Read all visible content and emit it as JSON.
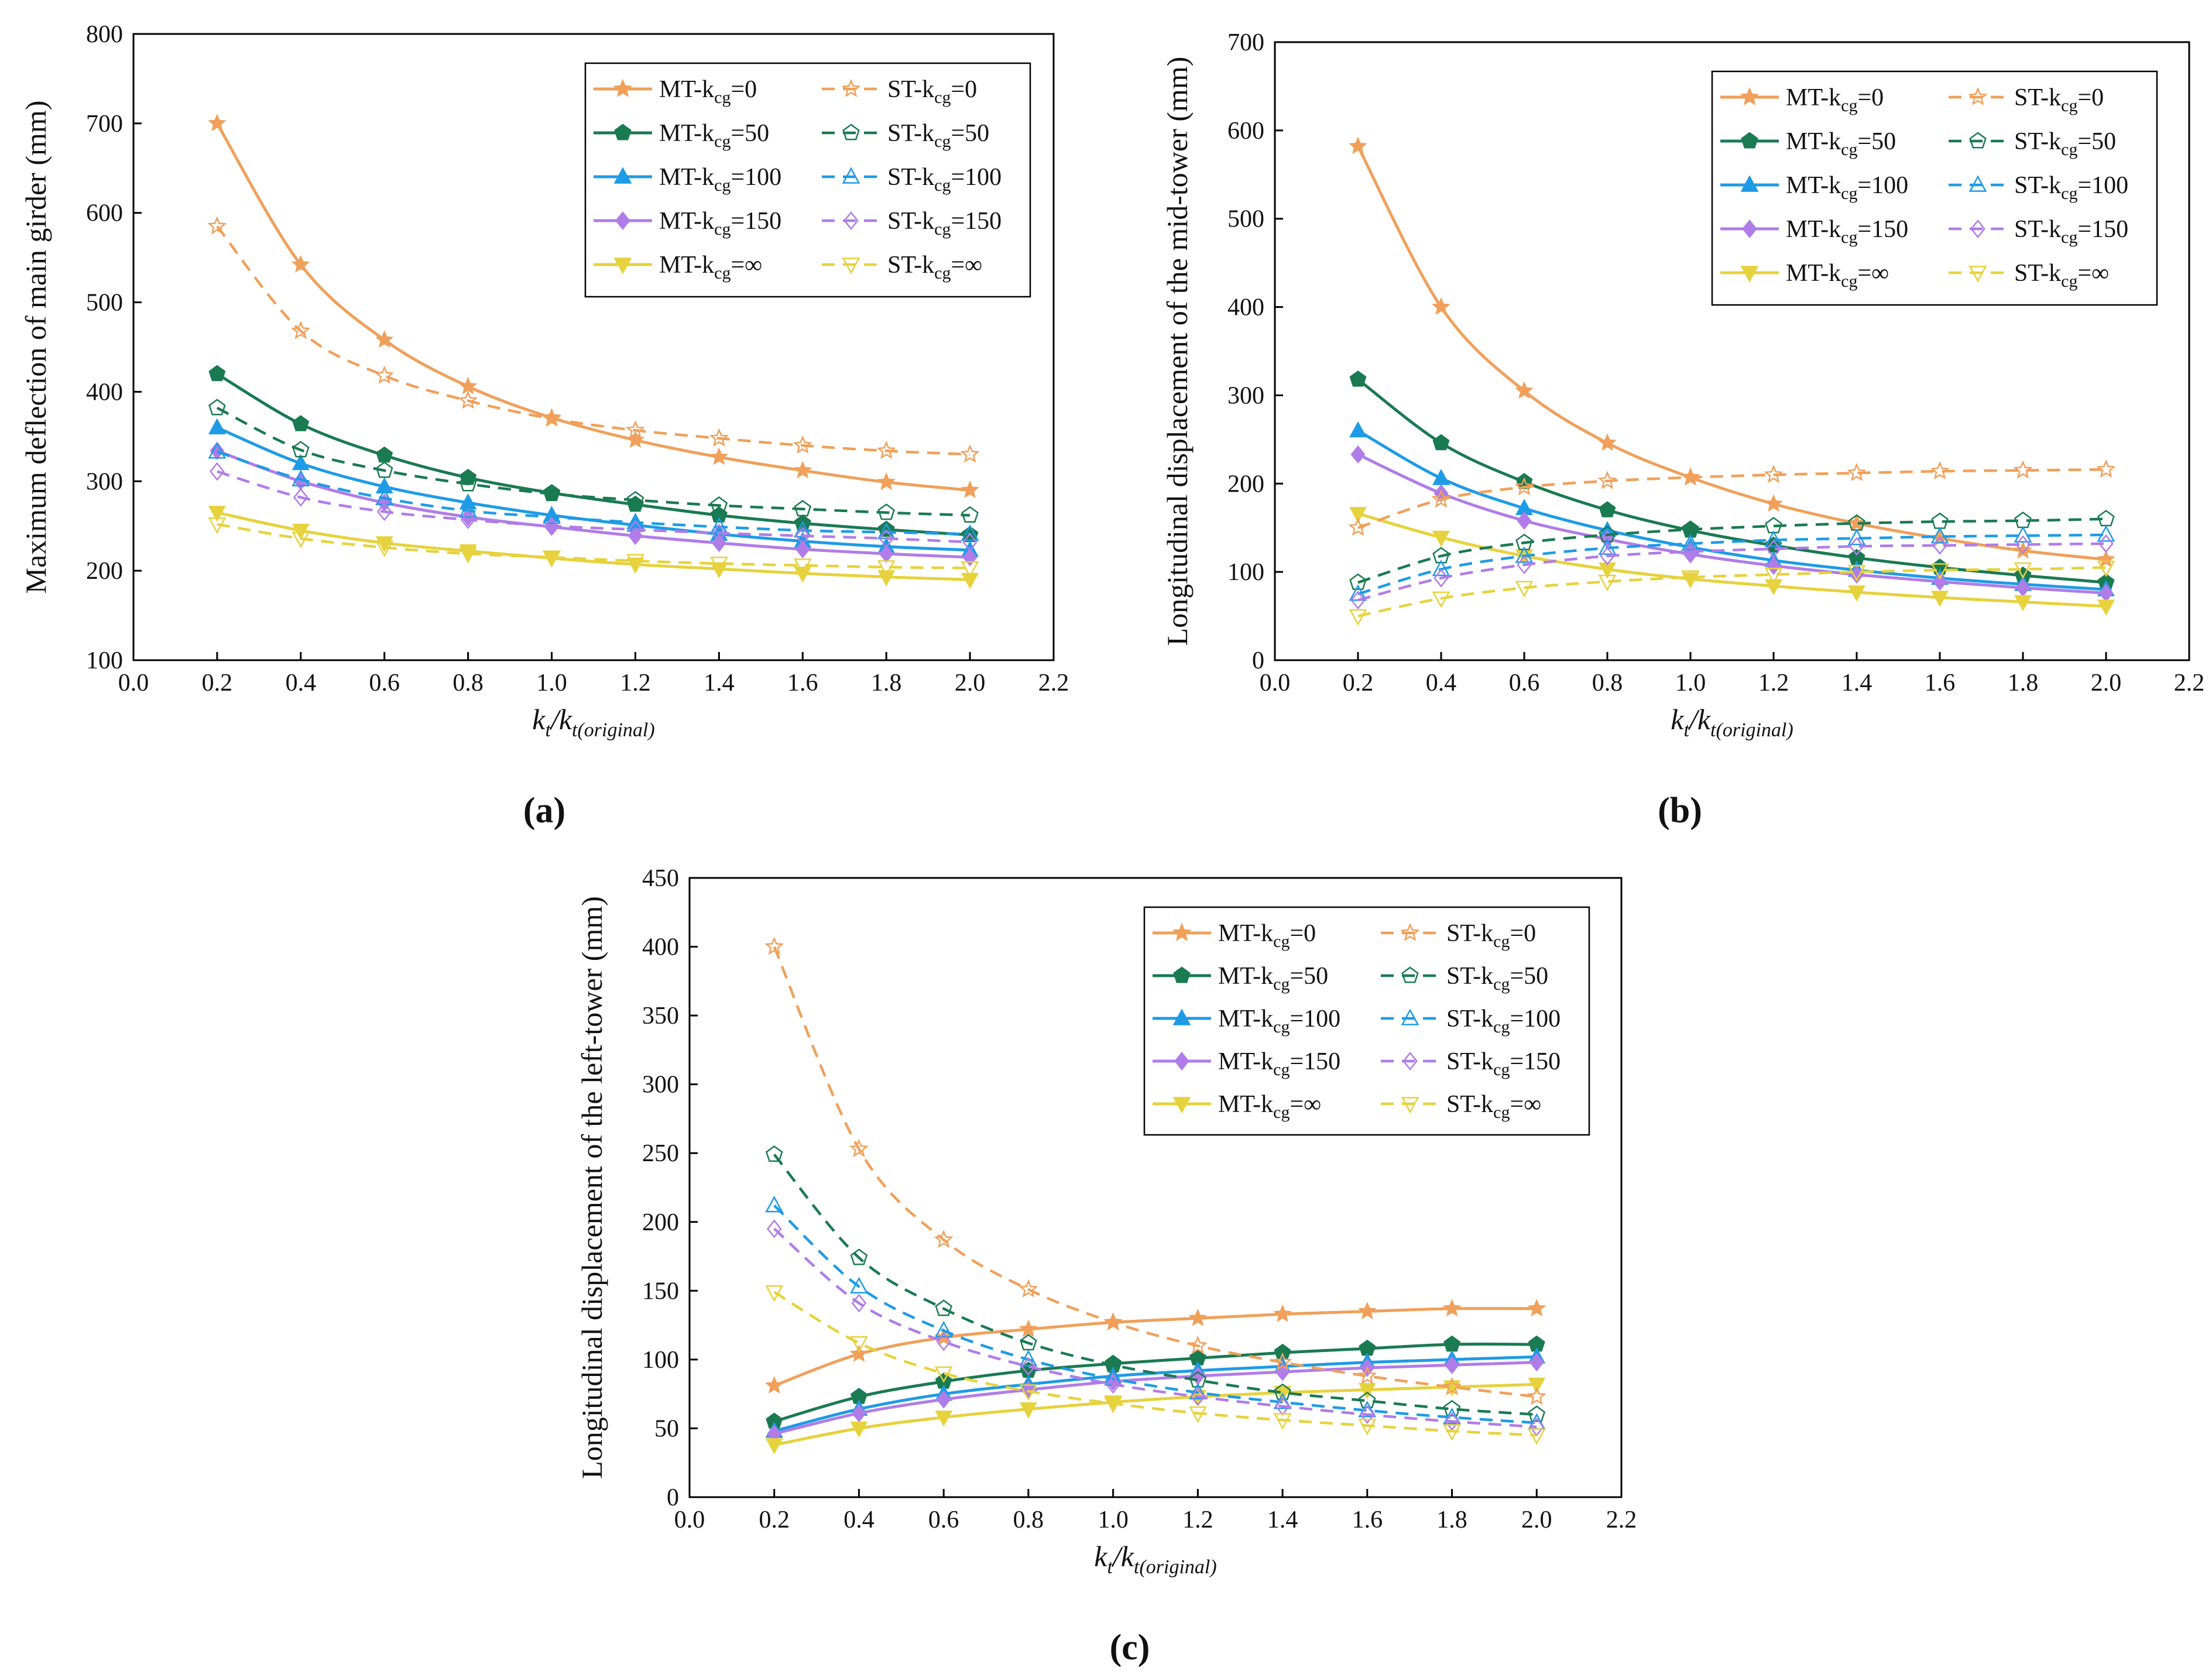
{
  "figure": {
    "panel_captions": [
      "(a)",
      "(b)",
      "(c)"
    ]
  },
  "series_styles": [
    {
      "key": "kcg0",
      "color": "#F0A05A",
      "marker": "star"
    },
    {
      "key": "kcg50",
      "color": "#1A7A52",
      "marker": "pentagon"
    },
    {
      "key": "kcg100",
      "color": "#1E9BE6",
      "marker": "triangle"
    },
    {
      "key": "kcg150",
      "color": "#B07CE8",
      "marker": "diamond"
    },
    {
      "key": "kcginf",
      "color": "#E6D23C",
      "marker": "triangle-down"
    }
  ],
  "legend": {
    "mt_prefix": "MT-k",
    "st_prefix": "ST-k",
    "subscript": "cg",
    "values": [
      "=0",
      "=50",
      "=100",
      "=150",
      "=∞"
    ]
  },
  "chart_data": [
    {
      "type": "line",
      "panel": "(a)",
      "title": "",
      "xlabel_main": "k",
      "xlabel_sub1": "t",
      "xlabel_mid": "/k",
      "xlabel_sub2": "t(original)",
      "ylabel": "Maximum deflection of main girder (mm)",
      "xlim": [
        0.0,
        2.2
      ],
      "ylim": [
        100,
        800
      ],
      "xticks": [
        0.0,
        0.2,
        0.4,
        0.6,
        0.8,
        1.0,
        1.2,
        1.4,
        1.6,
        1.8,
        2.0,
        2.2
      ],
      "xtick_labels": [
        "0.0",
        "0.2",
        "0.4",
        "0.6",
        "0.8",
        "1.0",
        "1.2",
        "1.4",
        "1.6",
        "1.8",
        "2.0",
        "2.2"
      ],
      "yticks": [
        100,
        200,
        300,
        400,
        500,
        600,
        700,
        800
      ],
      "ytick_labels": [
        "100",
        "200",
        "300",
        "400",
        "500",
        "600",
        "700",
        "800"
      ],
      "x": [
        0.2,
        0.4,
        0.6,
        0.8,
        1.0,
        1.2,
        1.4,
        1.6,
        1.8,
        2.0
      ],
      "legend_position": "top-right",
      "series": [
        {
          "name": "MT-kcg=0",
          "style": 0,
          "dashed": false,
          "values": [
            700,
            542,
            458,
            406,
            371,
            346,
            327,
            312,
            299,
            290
          ]
        },
        {
          "name": "MT-kcg=50",
          "style": 1,
          "dashed": false,
          "values": [
            420,
            364,
            329,
            304,
            287,
            274,
            262,
            253,
            246,
            240
          ]
        },
        {
          "name": "MT-kcg=100",
          "style": 2,
          "dashed": false,
          "values": [
            360,
            320,
            294,
            276,
            262,
            251,
            241,
            233,
            227,
            223
          ]
        },
        {
          "name": "MT-kcg=150",
          "style": 3,
          "dashed": false,
          "values": [
            334,
            300,
            276,
            260,
            249,
            239,
            231,
            224,
            219,
            215
          ]
        },
        {
          "name": "MT-kcg=∞",
          "style": 4,
          "dashed": false,
          "values": [
            265,
            245,
            231,
            222,
            214,
            207,
            202,
            197,
            193,
            190
          ]
        },
        {
          "name": "ST-kcg=0",
          "style": 0,
          "dashed": true,
          "values": [
            585,
            468,
            418,
            390,
            370,
            357,
            348,
            340,
            334,
            330
          ]
        },
        {
          "name": "ST-kcg=50",
          "style": 1,
          "dashed": true,
          "values": [
            382,
            335,
            312,
            297,
            286,
            279,
            273,
            269,
            265,
            262
          ]
        },
        {
          "name": "ST-kcg=100",
          "style": 2,
          "dashed": true,
          "values": [
            333,
            302,
            281,
            267,
            260,
            254,
            249,
            245,
            243,
            241
          ]
        },
        {
          "name": "ST-kcg=150",
          "style": 3,
          "dashed": true,
          "values": [
            311,
            282,
            266,
            257,
            250,
            246,
            242,
            239,
            236,
            232
          ]
        },
        {
          "name": "ST-kcg=∞",
          "style": 4,
          "dashed": true,
          "values": [
            252,
            236,
            226,
            219,
            215,
            211,
            208,
            206,
            204,
            203
          ]
        }
      ]
    },
    {
      "type": "line",
      "panel": "(b)",
      "title": "",
      "xlabel_main": "k",
      "xlabel_sub1": "t",
      "xlabel_mid": "/k",
      "xlabel_sub2": "t(original)",
      "ylabel": "Longitudinal displacement of the mid-tower (mm)",
      "xlim": [
        0.0,
        2.2
      ],
      "ylim": [
        0,
        700
      ],
      "xticks": [
        0.0,
        0.2,
        0.4,
        0.6,
        0.8,
        1.0,
        1.2,
        1.4,
        1.6,
        1.8,
        2.0,
        2.2
      ],
      "xtick_labels": [
        "0.0",
        "0.2",
        "0.4",
        "0.6",
        "0.8",
        "1.0",
        "1.2",
        "1.4",
        "1.6",
        "1.8",
        "2.0",
        "2.2"
      ],
      "yticks": [
        0,
        100,
        200,
        300,
        400,
        500,
        600,
        700
      ],
      "ytick_labels": [
        "0",
        "100",
        "200",
        "300",
        "400",
        "500",
        "600",
        "700"
      ],
      "x": [
        0.2,
        0.4,
        0.6,
        0.8,
        1.0,
        1.2,
        1.4,
        1.6,
        1.8,
        2.0
      ],
      "legend_position": "top-right",
      "series": [
        {
          "name": "MT-kcg=0",
          "style": 0,
          "dashed": false,
          "values": [
            582,
            400,
            305,
            246,
            207,
            177,
            155,
            138,
            124,
            114
          ]
        },
        {
          "name": "MT-kcg=50",
          "style": 1,
          "dashed": false,
          "values": [
            318,
            246,
            202,
            170,
            147,
            130,
            116,
            105,
            96,
            88
          ]
        },
        {
          "name": "MT-kcg=100",
          "style": 2,
          "dashed": false,
          "values": [
            260,
            206,
            172,
            147,
            128,
            113,
            102,
            93,
            86,
            80
          ]
        },
        {
          "name": "MT-kcg=150",
          "style": 3,
          "dashed": false,
          "values": [
            233,
            189,
            158,
            137,
            120,
            107,
            97,
            89,
            82,
            76
          ]
        },
        {
          "name": "MT-kcg=∞",
          "style": 4,
          "dashed": false,
          "values": [
            166,
            139,
            118,
            103,
            92,
            84,
            77,
            71,
            66,
            61
          ]
        },
        {
          "name": "ST-kcg=0",
          "style": 0,
          "dashed": true,
          "values": [
            150,
            182,
            196,
            203,
            207,
            210,
            212,
            214,
            215,
            216
          ]
        },
        {
          "name": "ST-kcg=50",
          "style": 1,
          "dashed": true,
          "values": [
            88,
            118,
            133,
            142,
            148,
            152,
            155,
            157,
            158,
            160
          ]
        },
        {
          "name": "ST-kcg=100",
          "style": 2,
          "dashed": true,
          "values": [
            75,
            103,
            118,
            127,
            132,
            136,
            138,
            140,
            141,
            142
          ]
        },
        {
          "name": "ST-kcg=150",
          "style": 3,
          "dashed": true,
          "values": [
            68,
            93,
            108,
            118,
            123,
            126,
            129,
            130,
            131,
            132
          ]
        },
        {
          "name": "ST-kcg=∞",
          "style": 4,
          "dashed": true,
          "values": [
            50,
            70,
            82,
            89,
            94,
            97,
            100,
            102,
            103,
            105
          ]
        }
      ]
    },
    {
      "type": "line",
      "panel": "(c)",
      "title": "",
      "xlabel_main": "k",
      "xlabel_sub1": "t",
      "xlabel_mid": "/k",
      "xlabel_sub2": "t(original)",
      "ylabel": "Longitudinal displacement of the left-tower (mm)",
      "xlim": [
        0.0,
        2.2
      ],
      "ylim": [
        0,
        450
      ],
      "xticks": [
        0.0,
        0.2,
        0.4,
        0.6,
        0.8,
        1.0,
        1.2,
        1.4,
        1.6,
        1.8,
        2.0,
        2.2
      ],
      "xtick_labels": [
        "0.0",
        "0.2",
        "0.4",
        "0.6",
        "0.8",
        "1.0",
        "1.2",
        "1.4",
        "1.6",
        "1.8",
        "2.0",
        "2.2"
      ],
      "yticks": [
        0,
        50,
        100,
        150,
        200,
        250,
        300,
        350,
        400,
        450
      ],
      "ytick_labels": [
        "0",
        "50",
        "100",
        "150",
        "200",
        "250",
        "300",
        "350",
        "400",
        "450"
      ],
      "x": [
        0.2,
        0.4,
        0.6,
        0.8,
        1.0,
        1.2,
        1.4,
        1.6,
        1.8,
        2.0
      ],
      "legend_position": "top-right",
      "series": [
        {
          "name": "MT-kcg=0",
          "style": 0,
          "dashed": false,
          "values": [
            81,
            104,
            116,
            122,
            127,
            130,
            133,
            135,
            137,
            137
          ]
        },
        {
          "name": "MT-kcg=50",
          "style": 1,
          "dashed": false,
          "values": [
            55,
            73,
            84,
            92,
            97,
            101,
            105,
            108,
            111,
            111
          ]
        },
        {
          "name": "MT-kcg=100",
          "style": 2,
          "dashed": false,
          "values": [
            48,
            64,
            75,
            82,
            88,
            92,
            95,
            98,
            100,
            102
          ]
        },
        {
          "name": "MT-kcg=150",
          "style": 3,
          "dashed": false,
          "values": [
            46,
            61,
            71,
            78,
            84,
            88,
            91,
            94,
            96,
            98
          ]
        },
        {
          "name": "MT-kcg=∞",
          "style": 4,
          "dashed": false,
          "values": [
            38,
            50,
            58,
            64,
            69,
            73,
            76,
            78,
            80,
            82
          ]
        },
        {
          "name": "ST-kcg=0",
          "style": 0,
          "dashed": true,
          "values": [
            400,
            253,
            187,
            151,
            127,
            110,
            98,
            88,
            80,
            73
          ]
        },
        {
          "name": "ST-kcg=50",
          "style": 1,
          "dashed": true,
          "values": [
            249,
            174,
            137,
            112,
            96,
            85,
            76,
            70,
            64,
            60
          ]
        },
        {
          "name": "ST-kcg=100",
          "style": 2,
          "dashed": true,
          "values": [
            212,
            153,
            121,
            100,
            86,
            76,
            69,
            63,
            58,
            54
          ]
        },
        {
          "name": "ST-kcg=150",
          "style": 3,
          "dashed": true,
          "values": [
            195,
            141,
            113,
            95,
            82,
            73,
            66,
            60,
            55,
            51
          ]
        },
        {
          "name": "ST-kcg=∞",
          "style": 4,
          "dashed": true,
          "values": [
            149,
            112,
            90,
            77,
            68,
            61,
            56,
            52,
            48,
            45
          ]
        }
      ]
    }
  ]
}
